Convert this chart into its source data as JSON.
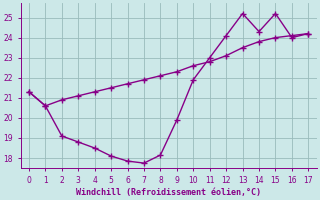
{
  "line1_x": [
    0,
    1,
    2,
    3,
    4,
    5,
    6,
    7,
    8,
    9,
    10,
    11,
    12,
    13,
    14,
    15,
    16,
    17
  ],
  "line1_y": [
    21.3,
    20.6,
    20.9,
    21.1,
    21.3,
    21.5,
    21.7,
    21.9,
    22.1,
    22.3,
    22.6,
    22.8,
    23.1,
    23.5,
    23.8,
    24.0,
    24.1,
    24.2
  ],
  "line2_x": [
    0,
    1,
    2,
    3,
    4,
    5,
    6,
    7,
    8,
    9,
    10,
    11,
    12,
    13,
    14,
    15,
    16,
    17
  ],
  "line2_y": [
    21.3,
    20.6,
    19.1,
    18.8,
    18.5,
    18.1,
    17.85,
    17.75,
    18.15,
    19.9,
    21.9,
    23.0,
    24.1,
    25.2,
    24.3,
    25.2,
    24.0,
    24.2
  ],
  "color": "#880088",
  "bg_color": "#cce8e8",
  "grid_color": "#99bbbb",
  "xlabel": "Windchill (Refroidissement éolien,°C)",
  "xlim": [
    -0.5,
    17.5
  ],
  "ylim": [
    17.5,
    25.7
  ],
  "yticks": [
    18,
    19,
    20,
    21,
    22,
    23,
    24,
    25
  ],
  "xticks": [
    0,
    1,
    2,
    3,
    4,
    5,
    6,
    7,
    8,
    9,
    10,
    11,
    12,
    13,
    14,
    15,
    16,
    17
  ],
  "marker": "+",
  "linewidth": 1.0,
  "markersize": 4,
  "tick_labelsize": 5.5,
  "xlabel_fontsize": 6.0
}
